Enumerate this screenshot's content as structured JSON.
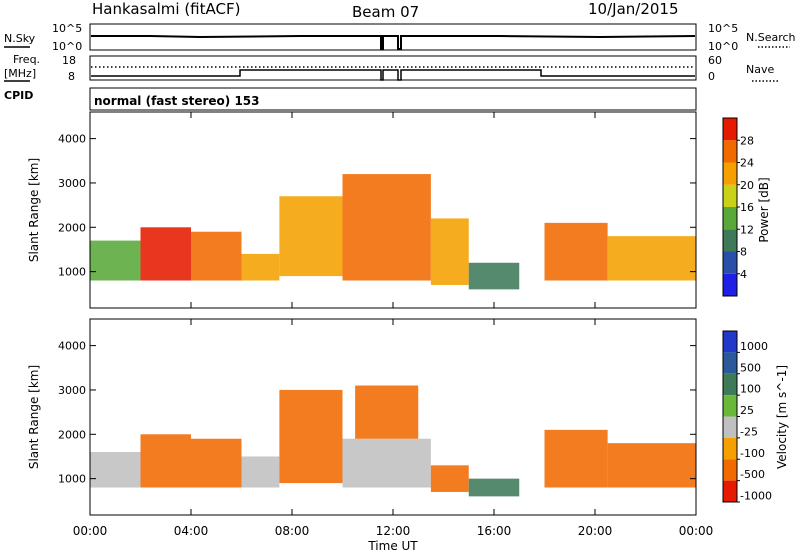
{
  "header": {
    "station": "Hankasalmi (fitACF)",
    "beam": "Beam 07",
    "date": "10/Jan/2015"
  },
  "noise_panel": {
    "left_label": "N.Sky",
    "left_top": "10^5",
    "left_bottom": "10^0",
    "right_label": "N.Search",
    "right_top": "10^5",
    "right_bottom": "10^0"
  },
  "freq_panel": {
    "left_label_1": "Freq.",
    "left_label_2": "[MHz]",
    "left_top": "18",
    "left_bottom": "8",
    "right_label": "Nave",
    "right_top": "60",
    "right_bottom": "0"
  },
  "cpid": {
    "label": "CPID",
    "mode": "normal (fast stereo) 153"
  },
  "axes": {
    "x_ticks": [
      "00:00",
      "04:00",
      "08:00",
      "12:00",
      "16:00",
      "20:00",
      "00:00"
    ],
    "x_label": "Time UT",
    "y_ticks": [
      "1000",
      "2000",
      "3000",
      "4000"
    ],
    "y_label": "Slant Range [km]"
  },
  "power_colorbar": {
    "title": "Power [dB]",
    "ticks": [
      "4",
      "8",
      "12",
      "16",
      "20",
      "24",
      "28"
    ],
    "colors": [
      "#1f1fe6",
      "#2a4fa8",
      "#3e7a5a",
      "#5aa83a",
      "#c8d21a",
      "#f5a000",
      "#f06a00",
      "#e61a00"
    ]
  },
  "velocity_colorbar": {
    "title": "Velocity [m s^-1]",
    "ticks": [
      "1000",
      "500",
      "100",
      "25",
      "-25",
      "-100",
      "-500",
      "-1000"
    ],
    "colors": [
      "#2238c8",
      "#2a5a9a",
      "#3e7a5a",
      "#6ab83a",
      "#c0c0c0",
      "#f5a000",
      "#f06a00",
      "#e61a00"
    ]
  },
  "chart_data": [
    {
      "type": "heatmap",
      "title": "Power",
      "xlabel": "Time UT",
      "ylabel": "Slant Range [km]",
      "xlim_hours": [
        0,
        24
      ],
      "ylim_km": [
        180,
        4600
      ],
      "colorbar_unit": "dB",
      "colorbar_range": [
        0,
        30
      ],
      "regions": [
        {
          "t0": 0.0,
          "t1": 2.0,
          "r0": 800,
          "r1": 1700,
          "value": 14
        },
        {
          "t0": 2.0,
          "t1": 4.0,
          "r0": 800,
          "r1": 2000,
          "value": 27
        },
        {
          "t0": 4.0,
          "t1": 6.0,
          "r0": 800,
          "r1": 1900,
          "value": 24
        },
        {
          "t0": 6.0,
          "t1": 7.5,
          "r0": 800,
          "r1": 1400,
          "value": 20
        },
        {
          "t0": 7.5,
          "t1": 10.0,
          "r0": 900,
          "r1": 2700,
          "value": 22
        },
        {
          "t0": 10.0,
          "t1": 13.5,
          "r0": 800,
          "r1": 3200,
          "value": 26
        },
        {
          "t0": 13.5,
          "t1": 15.0,
          "r0": 700,
          "r1": 2200,
          "value": 20
        },
        {
          "t0": 15.0,
          "t1": 17.0,
          "r0": 600,
          "r1": 1200,
          "value": 10
        },
        {
          "t0": 18.0,
          "t1": 20.5,
          "r0": 800,
          "r1": 2100,
          "value": 25
        },
        {
          "t0": 20.5,
          "t1": 24.0,
          "r0": 800,
          "r1": 1800,
          "value": 22
        }
      ]
    },
    {
      "type": "heatmap",
      "title": "Velocity",
      "xlabel": "Time UT",
      "ylabel": "Slant Range [km]",
      "xlim_hours": [
        0,
        24
      ],
      "ylim_km": [
        180,
        4600
      ],
      "colorbar_unit": "m s^-1",
      "regions": [
        {
          "t0": 0.0,
          "t1": 2.0,
          "r0": 800,
          "r1": 1600,
          "value": 0
        },
        {
          "t0": 2.0,
          "t1": 4.0,
          "r0": 800,
          "r1": 2000,
          "value": -300
        },
        {
          "t0": 4.0,
          "t1": 6.0,
          "r0": 800,
          "r1": 1900,
          "value": -200
        },
        {
          "t0": 6.0,
          "t1": 7.5,
          "r0": 800,
          "r1": 1500,
          "value": 0
        },
        {
          "t0": 7.5,
          "t1": 10.0,
          "r0": 900,
          "r1": 3000,
          "value": -300
        },
        {
          "t0": 10.0,
          "t1": 13.5,
          "r0": 800,
          "r1": 1900,
          "value": 0
        },
        {
          "t0": 10.5,
          "t1": 13.0,
          "r0": 1900,
          "r1": 3100,
          "value": -300
        },
        {
          "t0": 13.5,
          "t1": 15.0,
          "r0": 700,
          "r1": 1300,
          "value": -200
        },
        {
          "t0": 15.0,
          "t1": 17.0,
          "r0": 600,
          "r1": 1000,
          "value": 150
        },
        {
          "t0": 18.0,
          "t1": 20.5,
          "r0": 800,
          "r1": 2100,
          "value": -150
        },
        {
          "t0": 20.5,
          "t1": 24.0,
          "r0": 800,
          "r1": 1800,
          "value": -200
        }
      ]
    }
  ]
}
